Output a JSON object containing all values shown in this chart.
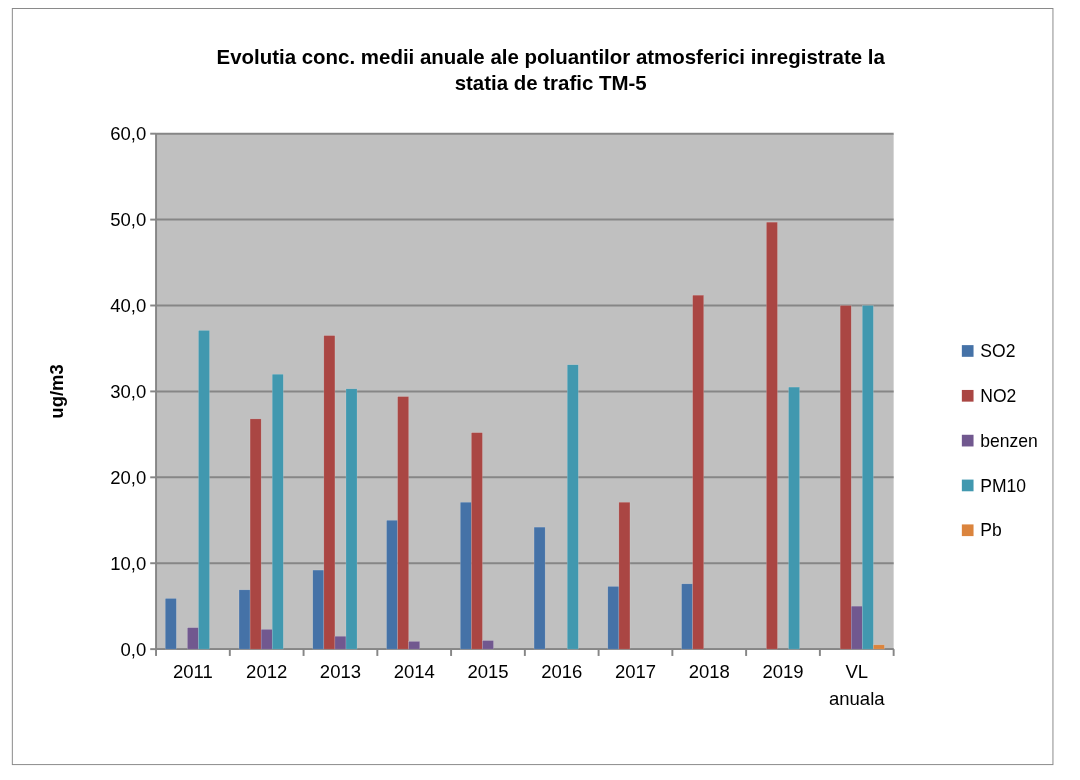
{
  "chart_data": {
    "type": "bar",
    "title": "Evolutia conc. medii anuale ale poluantilor atmosferici inregistrate la statia de trafic TM-5",
    "ylabel": "ug/m3",
    "categories": [
      "2011",
      "2012",
      "2013",
      "2014",
      "2015",
      "2016",
      "2017",
      "2018",
      "2019",
      "VL anuala"
    ],
    "series": [
      {
        "name": "SO2",
        "color": "#4572a7",
        "values": [
          5.9,
          6.9,
          9.2,
          15.0,
          17.1,
          14.2,
          7.3,
          7.6,
          null,
          null
        ]
      },
      {
        "name": "NO2",
        "color": "#aa4643",
        "values": [
          null,
          26.8,
          36.5,
          29.4,
          25.2,
          null,
          17.1,
          41.2,
          49.7,
          40.0
        ]
      },
      {
        "name": "benzen",
        "color": "#71588f",
        "values": [
          2.5,
          2.3,
          1.5,
          0.9,
          1.0,
          null,
          null,
          null,
          null,
          5.0
        ]
      },
      {
        "name": "PM10",
        "color": "#4198af",
        "values": [
          37.1,
          32.0,
          30.3,
          null,
          null,
          33.1,
          null,
          null,
          30.5,
          40.0
        ]
      },
      {
        "name": "Pb",
        "color": "#db843d",
        "values": [
          null,
          null,
          null,
          null,
          null,
          null,
          null,
          null,
          null,
          0.5
        ]
      }
    ],
    "ylim": [
      0,
      60
    ],
    "yticks": [
      {
        "value": 0,
        "label": "0,0"
      },
      {
        "value": 10,
        "label": "10,0"
      },
      {
        "value": 20,
        "label": "20,0"
      },
      {
        "value": 30,
        "label": "30,0"
      },
      {
        "value": 40,
        "label": "40,0"
      },
      {
        "value": 50,
        "label": "50,0"
      },
      {
        "value": 60,
        "label": "60,0"
      }
    ],
    "grid": "y",
    "legend": "right"
  }
}
